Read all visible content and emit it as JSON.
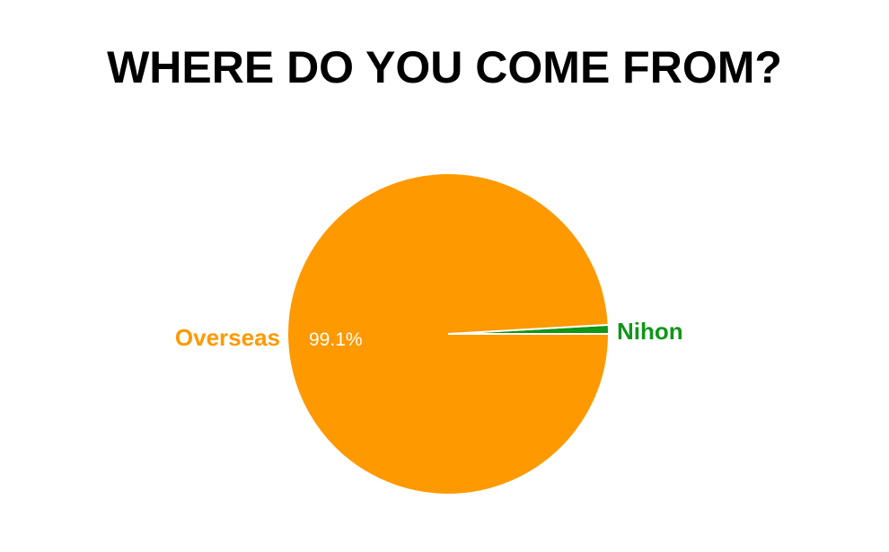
{
  "chart_data": {
    "type": "pie",
    "title": "WHERE DO YOU COME FROM?",
    "slices": [
      {
        "label": "Overseas",
        "value": 99.1,
        "color": "#ff9900",
        "value_label": "99.1%"
      },
      {
        "label": "Nihon",
        "value": 0.9,
        "color": "#109618",
        "value_label": ""
      }
    ],
    "legend": "labels beside slices"
  }
}
